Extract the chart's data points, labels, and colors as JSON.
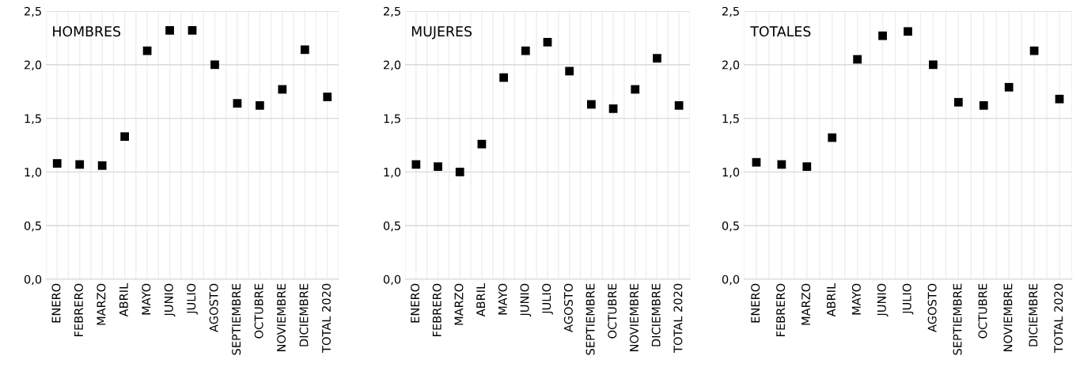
{
  "chart_data": [
    {
      "type": "scatter",
      "title": "HOMBRES",
      "categories": [
        "ENERO",
        "FEBRERO",
        "MARZO",
        "ABRIL",
        "MAYO",
        "JUNIO",
        "JULIO",
        "AGOSTO",
        "SEPTIEMBRE",
        "OCTUBRE",
        "NOVIEMBRE",
        "DICIEMBRE",
        "TOTAL 2020"
      ],
      "series": [
        {
          "color": "#000000",
          "values": [
            1.08,
            1.07,
            1.06,
            1.33,
            2.13,
            2.32,
            2.32,
            2.0,
            1.64,
            1.62,
            1.77,
            2.14,
            1.7
          ]
        }
      ],
      "ylim": [
        0,
        2.5
      ],
      "yticks": [
        {
          "value": 0,
          "label": "0,0"
        },
        {
          "value": 0.5,
          "label": "0,5"
        },
        {
          "value": 1,
          "label": "1,0"
        },
        {
          "value": 1.5,
          "label": "1,5"
        },
        {
          "value": 2,
          "label": "2,0"
        },
        {
          "value": 2.5,
          "label": "2,5"
        }
      ],
      "grid": true,
      "marker": "square"
    },
    {
      "type": "scatter",
      "title": "MUJERES",
      "categories": [
        "ENERO",
        "FEBRERO",
        "MARZO",
        "ABRIL",
        "MAYO",
        "JUNIO",
        "JULIO",
        "AGOSTO",
        "SEPTIEMBRE",
        "OCTUBRE",
        "NOVIEMBRE",
        "DICIEMBRE",
        "TOTAL 2020"
      ],
      "series": [
        {
          "color": "#000000",
          "values": [
            1.07,
            1.05,
            1.0,
            1.26,
            1.88,
            2.13,
            2.21,
            1.94,
            1.63,
            1.59,
            1.77,
            2.06,
            1.62
          ]
        }
      ],
      "ylim": [
        0,
        2.5
      ],
      "yticks": [
        {
          "value": 0,
          "label": "0,0"
        },
        {
          "value": 0.5,
          "label": "0,5"
        },
        {
          "value": 1,
          "label": "1,0"
        },
        {
          "value": 1.5,
          "label": "1,5"
        },
        {
          "value": 2,
          "label": "2,0"
        },
        {
          "value": 2.5,
          "label": "2,5"
        }
      ],
      "grid": true,
      "marker": "square"
    },
    {
      "type": "scatter",
      "title": "TOTALES",
      "categories": [
        "ENERO",
        "FEBRERO",
        "MARZO",
        "ABRIL",
        "MAYO",
        "JUNIO",
        "JULIO",
        "AGOSTO",
        "SEPTIEMBRE",
        "OCTUBRE",
        "NOVIEMBRE",
        "DICIEMBRE",
        "TOTAL 2020"
      ],
      "series": [
        {
          "color": "#000000",
          "values": [
            1.09,
            1.07,
            1.05,
            1.32,
            2.05,
            2.27,
            2.31,
            2.0,
            1.65,
            1.62,
            1.79,
            2.13,
            1.68
          ]
        }
      ],
      "ylim": [
        0,
        2.5
      ],
      "yticks": [
        {
          "value": 0,
          "label": "0,0"
        },
        {
          "value": 0.5,
          "label": "0,5"
        },
        {
          "value": 1,
          "label": "1,0"
        },
        {
          "value": 1.5,
          "label": "1,5"
        },
        {
          "value": 2,
          "label": "2,0"
        },
        {
          "value": 2.5,
          "label": "2,5"
        }
      ],
      "grid": true,
      "marker": "square"
    }
  ]
}
